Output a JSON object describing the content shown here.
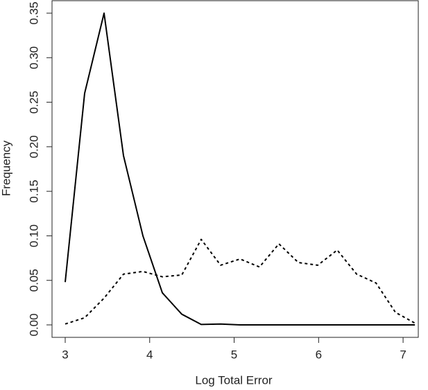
{
  "chart_data": {
    "type": "line",
    "x_label": "Log Total Error",
    "y_label": "Frequency",
    "x": [
      3.0,
      3.23,
      3.46,
      3.69,
      3.92,
      4.15,
      4.38,
      4.61,
      4.84,
      5.07,
      5.3,
      5.53,
      5.76,
      5.99,
      6.22,
      6.45,
      6.68,
      6.91,
      7.14
    ],
    "series": [
      {
        "color": "#000000",
        "dashed": false,
        "values": [
          0.048,
          0.26,
          0.35,
          0.19,
          0.1,
          0.036,
          0.012,
          0.0005,
          0.001,
          0,
          0,
          0,
          0,
          0,
          0,
          0,
          0,
          0,
          0
        ]
      },
      {
        "color": "#000000",
        "dashed": true,
        "values": [
          0.001,
          0.008,
          0.03,
          0.057,
          0.06,
          0.054,
          0.056,
          0.096,
          0.067,
          0.074,
          0.065,
          0.091,
          0.07,
          0.067,
          0.084,
          0.057,
          0.047,
          0.014,
          0.002
        ]
      }
    ],
    "xlim": [
      2.844,
      7.18
    ],
    "ylim": [
      -0.014,
      0.364
    ],
    "xticks": [
      3,
      4,
      5,
      6,
      7
    ],
    "yticks": [
      {
        "value": 0,
        "label": "0.00"
      },
      {
        "value": 0.05,
        "label": "0.05"
      },
      {
        "value": 0.1,
        "label": "0.10"
      },
      {
        "value": 0.15,
        "label": "0.15"
      },
      {
        "value": 0.2,
        "label": "0.20"
      },
      {
        "value": 0.25,
        "label": "0.25"
      },
      {
        "value": 0.3,
        "label": "0.30"
      },
      {
        "value": 0.35,
        "label": "0.35"
      }
    ]
  }
}
